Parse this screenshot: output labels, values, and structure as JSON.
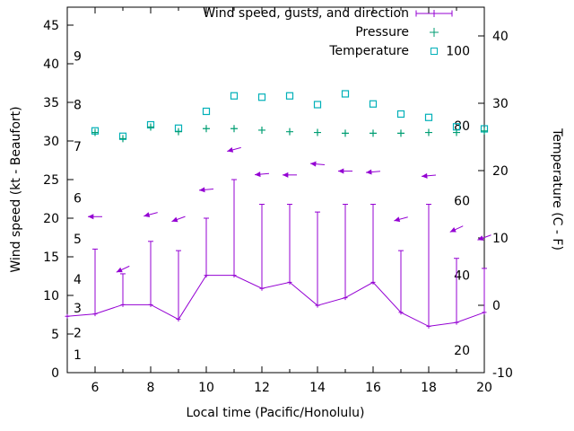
{
  "chart_data": {
    "type": "line",
    "xlabel": "Local time (Pacific/Honolulu)",
    "ylabel_left": "Wind speed (kt - Beaufort)",
    "ylabel_right": "Temperature (C - F)",
    "x_range": [
      5,
      20
    ],
    "x_major_ticks": [
      6,
      8,
      10,
      12,
      14,
      16,
      18,
      20
    ],
    "x_minor_ticks": [
      7,
      9,
      11,
      13,
      15,
      17,
      19
    ],
    "grid": false,
    "legend_position": "top-right-inside",
    "left_axis": {
      "range_kt": [
        0,
        45
      ],
      "ticks_kt": [
        0,
        5,
        10,
        15,
        20,
        25,
        30,
        35,
        40,
        45
      ],
      "beaufort_scale": [
        {
          "label": "1",
          "kt": 2.3
        },
        {
          "label": "2",
          "kt": 5.2
        },
        {
          "label": "3",
          "kt": 8.4
        },
        {
          "label": "4",
          "kt": 12.1
        },
        {
          "label": "5",
          "kt": 17.3
        },
        {
          "label": "6",
          "kt": 22.6
        },
        {
          "label": "7",
          "kt": 29.3
        },
        {
          "label": "8",
          "kt": 34.7
        },
        {
          "label": "9",
          "kt": 41.0
        }
      ]
    },
    "right_axis": {
      "range_c": [
        -10,
        40
      ],
      "ticks_c": [
        -10,
        0,
        10,
        20,
        30,
        40
      ],
      "fahrenheit_scale": [
        {
          "label": "20",
          "f": 20
        },
        {
          "label": "40",
          "f": 40
        },
        {
          "label": "60",
          "f": 60
        },
        {
          "label": "80",
          "f": 80
        },
        {
          "label": "100",
          "f": 100
        }
      ]
    },
    "legend": [
      {
        "label": "Wind speed, gusts, and direction",
        "series": "wind",
        "color": "#9400d3",
        "marker": "linespoints"
      },
      {
        "label": "Pressure",
        "series": "pressure",
        "color": "#009e73",
        "marker": "plus"
      },
      {
        "label": "Temperature",
        "series": "temperature",
        "color": "#00b0b8",
        "marker": "open-square"
      }
    ],
    "series": {
      "wind": {
        "name": "Wind speed, gusts, and direction",
        "color": "#9400d3",
        "hours": [
          5,
          6,
          7,
          8,
          9,
          10,
          11,
          12,
          13,
          14,
          15,
          16,
          17,
          18,
          19,
          20
        ],
        "speed_kt": [
          7.3,
          7.6,
          8.8,
          8.8,
          6.9,
          12.6,
          12.6,
          10.9,
          11.7,
          8.7,
          9.7,
          11.7,
          7.8,
          6.0,
          6.5,
          7.8
        ],
        "gust_kt": [
          null,
          16,
          12.8,
          17,
          15.8,
          20,
          25,
          21.8,
          21.8,
          20.8,
          21.8,
          21.8,
          15.8,
          21.8,
          14.8,
          13.5
        ],
        "arrow_kt": [
          null,
          20.2,
          13.4,
          20.5,
          19.9,
          23.7,
          28.9,
          25.7,
          25.6,
          27.0,
          26.1,
          26.0,
          19.9,
          25.5,
          18.6,
          17.5
        ],
        "arrow_angle_deg": [
          null,
          180,
          205,
          195,
          200,
          185,
          195,
          185,
          180,
          175,
          180,
          185,
          195,
          185,
          205,
          200
        ]
      },
      "pressure": {
        "name": "Pressure",
        "color": "#009e73",
        "hours": [
          6,
          7,
          8,
          9,
          10,
          11,
          12,
          13,
          14,
          15,
          16,
          17,
          18,
          19,
          20
        ],
        "value_on_left_axis": [
          31.1,
          30.3,
          31.8,
          31.2,
          31.6,
          31.6,
          31.4,
          31.2,
          31.1,
          31.0,
          31.0,
          31.0,
          31.1,
          31.1,
          31.3
        ]
      },
      "temperature": {
        "name": "Temperature",
        "color": "#00b0b8",
        "hours": [
          6,
          7,
          8,
          9,
          10,
          11,
          12,
          13,
          14,
          15,
          16,
          17,
          18,
          19,
          20
        ],
        "celsius": [
          25.9,
          25.1,
          26.8,
          26.3,
          28.8,
          31.1,
          30.9,
          31.1,
          29.8,
          31.4,
          29.9,
          28.4,
          27.9,
          26.5,
          26.2
        ]
      }
    }
  }
}
